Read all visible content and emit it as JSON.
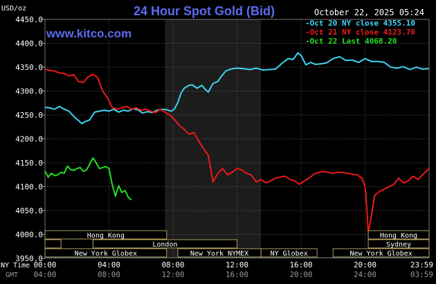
{
  "header": {
    "title": "24 Hour Spot Gold (Bid)",
    "date": "October 22, 2025 05:24",
    "site": "www.kitco.com",
    "unit": "USD/oz"
  },
  "colors": {
    "series_oct20": "#3fd6f5",
    "series_oct21": "#f01818",
    "series_oct22": "#22e022",
    "grid": "#5a5a5a",
    "highlight": "#1c1c1c",
    "session_box": "#b0a060"
  },
  "axis": {
    "ny_time_label": "NY Time",
    "gmt_label": "GMT",
    "ny_ticks": [
      "00:00",
      "04:00",
      "08:00",
      "12:00",
      "16:00",
      "20:00",
      "23:59"
    ],
    "gmt_ticks": [
      "04:00",
      "08:00",
      "12:00",
      "16:00",
      "20:00",
      "24:00",
      "03:59"
    ],
    "y_ticks": [
      "4450.0",
      "4400.0",
      "4350.0",
      "4300.0",
      "4250.0",
      "4200.0",
      "4150.0",
      "4100.0",
      "4050.0",
      "4000.0",
      "3950.0"
    ]
  },
  "sessions": {
    "row1": [
      {
        "label": "Hong Kong",
        "start": 0,
        "end": 7.6
      },
      {
        "label": "Hong Kong",
        "start": 20.2,
        "end": 24
      }
    ],
    "row2": [
      {
        "label": "",
        "start": 0,
        "end": 1.0
      },
      {
        "label": "London",
        "start": 3.0,
        "end": 12.0
      },
      {
        "label": "Sydney",
        "start": 20.2,
        "end": 24
      }
    ],
    "row3": [
      {
        "label": "New York Globex",
        "start": 0,
        "end": 7.6
      },
      {
        "label": "New York NYMEX",
        "start": 8.3,
        "end": 13.5
      },
      {
        "label": "NY Globex",
        "start": 13.5,
        "end": 17.0
      },
      {
        "label": "New York Globex",
        "start": 18.0,
        "end": 24
      }
    ]
  },
  "chart_data": {
    "type": "line",
    "title": "24 Hour Spot Gold (Bid)",
    "ylabel": "USD/oz",
    "xlabel": "NY Time",
    "ylim": [
      3950,
      4450
    ],
    "xlim": [
      0,
      24
    ],
    "highlight_range": [
      7.5,
      13.5
    ],
    "legend_position": "top-right",
    "grid": true,
    "series": [
      {
        "name": "Oct 20 NY close 4355.10",
        "x": [
          0,
          0.3,
          0.6,
          0.9,
          1.2,
          1.5,
          1.8,
          2.1,
          2.3,
          2.5,
          2.8,
          3.1,
          3.4,
          3.7,
          4.0,
          4.3,
          4.6,
          4.9,
          5.2,
          5.5,
          5.8,
          6.1,
          6.4,
          6.7,
          7.0,
          7.3,
          7.6,
          7.9,
          8.1,
          8.3,
          8.5,
          8.7,
          9.0,
          9.2,
          9.5,
          9.8,
          10.0,
          10.2,
          10.5,
          10.8,
          11.0,
          11.3,
          11.6,
          12.0,
          12.4,
          12.8,
          13.2,
          13.6,
          14.0,
          14.4,
          14.8,
          15.2,
          15.5,
          15.8,
          16.0,
          16.3,
          16.6,
          16.9,
          17.2,
          17.6,
          18.0,
          18.4,
          18.8,
          19.2,
          19.6,
          20.0,
          20.4,
          20.8,
          21.2,
          21.6,
          22.0,
          22.4,
          22.8,
          23.2,
          23.6,
          23.99
        ],
        "values": [
          4266,
          4265,
          4262,
          4268,
          4262,
          4258,
          4247,
          4238,
          4232,
          4236,
          4240,
          4256,
          4258,
          4260,
          4258,
          4262,
          4256,
          4260,
          4258,
          4263,
          4261,
          4254,
          4257,
          4255,
          4260,
          4262,
          4261,
          4258,
          4263,
          4276,
          4296,
          4306,
          4312,
          4313,
          4306,
          4312,
          4304,
          4298,
          4316,
          4320,
          4330,
          4342,
          4346,
          4348,
          4347,
          4345,
          4348,
          4344,
          4345,
          4346,
          4358,
          4368,
          4366,
          4380,
          4375,
          4355,
          4360,
          4356,
          4357,
          4359,
          4368,
          4372,
          4364,
          4365,
          4360,
          4368,
          4362,
          4362,
          4360,
          4350,
          4348,
          4351,
          4345,
          4350,
          4346,
          4347
        ]
      },
      {
        "name": "Oct 21 NY close 4123.70",
        "x": [
          0,
          0.3,
          0.6,
          0.9,
          1.2,
          1.5,
          1.8,
          2.1,
          2.4,
          2.7,
          3.0,
          3.3,
          3.6,
          3.9,
          4.2,
          4.5,
          4.8,
          5.1,
          5.4,
          5.7,
          6.0,
          6.3,
          6.6,
          6.9,
          7.2,
          7.5,
          7.8,
          8.1,
          8.4,
          8.7,
          9.0,
          9.3,
          9.6,
          9.9,
          10.2,
          10.5,
          10.8,
          11.1,
          11.4,
          11.7,
          12.0,
          12.3,
          12.6,
          12.9,
          13.2,
          13.5,
          13.8,
          14.1,
          14.4,
          14.7,
          15.0,
          15.3,
          15.6,
          15.9,
          16.2,
          16.5,
          16.8,
          17.1,
          17.4,
          17.7,
          18.0,
          18.3,
          18.6,
          18.9,
          19.2,
          19.5,
          19.8,
          20.0,
          20.1,
          20.2,
          20.4,
          20.6,
          20.9,
          21.2,
          21.5,
          21.8,
          22.1,
          22.4,
          22.7,
          23.0,
          23.3,
          23.6,
          23.99
        ],
        "values": [
          4346,
          4343,
          4342,
          4338,
          4337,
          4332,
          4334,
          4320,
          4318,
          4330,
          4335,
          4328,
          4300,
          4286,
          4266,
          4262,
          4265,
          4268,
          4262,
          4265,
          4260,
          4262,
          4258,
          4255,
          4262,
          4256,
          4250,
          4240,
          4228,
          4220,
          4210,
          4213,
          4196,
          4180,
          4166,
          4110,
          4128,
          4138,
          4125,
          4130,
          4138,
          4135,
          4128,
          4124,
          4110,
          4115,
          4108,
          4112,
          4118,
          4120,
          4122,
          4115,
          4112,
          4105,
          4112,
          4118,
          4126,
          4130,
          4132,
          4130,
          4128,
          4130,
          4130,
          4128,
          4126,
          4125,
          4118,
          4100,
          4060,
          4005,
          4040,
          4082,
          4090,
          4095,
          4100,
          4105,
          4118,
          4108,
          4112,
          4122,
          4115,
          4125,
          4138
        ]
      },
      {
        "name": "Oct 22 Last 4068.20",
        "x": [
          0,
          0.2,
          0.4,
          0.6,
          0.8,
          1.0,
          1.2,
          1.4,
          1.6,
          1.8,
          2.0,
          2.2,
          2.4,
          2.6,
          2.8,
          3.0,
          3.2,
          3.4,
          3.6,
          3.8,
          4.0,
          4.2,
          4.4,
          4.6,
          4.8,
          5.0,
          5.2,
          5.4
        ],
        "values": [
          4133,
          4120,
          4128,
          4123,
          4125,
          4130,
          4128,
          4143,
          4136,
          4134,
          4138,
          4140,
          4132,
          4135,
          4148,
          4160,
          4150,
          4138,
          4140,
          4142,
          4138,
          4105,
          4080,
          4102,
          4088,
          4092,
          4078,
          4072
        ]
      }
    ]
  }
}
